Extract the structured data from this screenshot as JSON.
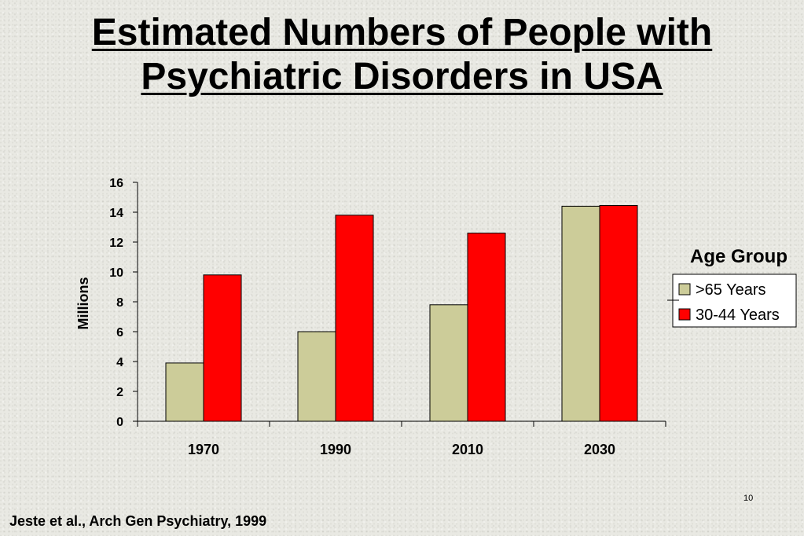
{
  "slide": {
    "title_line1": "Estimated Numbers of People with",
    "title_line2": "Psychiatric Disorders in USA",
    "citation": "Jeste et al., Arch Gen Psychiatry, 1999",
    "page_number": "10"
  },
  "chart_data": {
    "type": "bar",
    "title": "",
    "xlabel": "",
    "ylabel": "Millions",
    "categories": [
      "1970",
      "1990",
      "2010",
      "2030"
    ],
    "series": [
      {
        "name": ">65 Years",
        "values": [
          3.9,
          6.0,
          7.8,
          14.4
        ],
        "color": "#cccc99"
      },
      {
        "name": "30-44 Years",
        "values": [
          9.8,
          13.8,
          12.6,
          14.45
        ],
        "color": "#ff0000"
      }
    ],
    "ylim": [
      0,
      16
    ],
    "yticks": [
      0,
      2,
      4,
      6,
      8,
      10,
      12,
      14,
      16
    ],
    "grid": false,
    "legend": {
      "title": "Age Group",
      "placement": "right"
    }
  }
}
